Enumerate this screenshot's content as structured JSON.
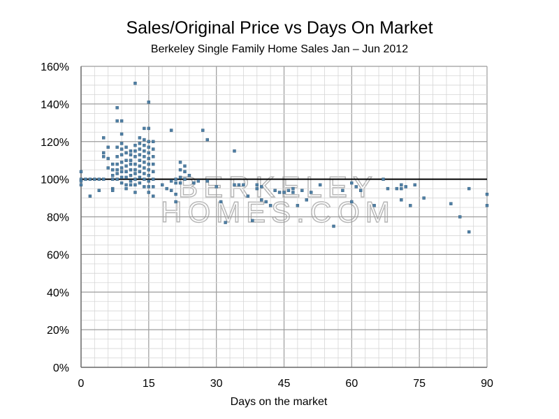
{
  "chart_data": {
    "type": "scatter",
    "title": "Sales/Original Price vs Days On Market",
    "subtitle": "Berkeley Single Family Home Sales Jan – Jun 2012",
    "xlabel": "Days on the market",
    "ylabel": "",
    "xlim": [
      0,
      90
    ],
    "ylim": [
      0,
      160
    ],
    "x_ticks": [
      0,
      15,
      30,
      45,
      60,
      75,
      90
    ],
    "x_tick_labels": [
      "0",
      "15",
      "30",
      "45",
      "60",
      "75",
      "90"
    ],
    "y_ticks": [
      0,
      20,
      40,
      60,
      80,
      100,
      120,
      140,
      160
    ],
    "y_tick_labels": [
      "0%",
      "20%",
      "40%",
      "60%",
      "80%",
      "100%",
      "120%",
      "140%",
      "160%"
    ],
    "grid": true,
    "legend": "none",
    "reference_line": 100,
    "marker_color": "#4f7fa4",
    "watermark": [
      "BERKELEY",
      "HOMES.COM"
    ],
    "points": [
      [
        0,
        104
      ],
      [
        0,
        100
      ],
      [
        0,
        99
      ],
      [
        0,
        97
      ],
      [
        1,
        100
      ],
      [
        2,
        100
      ],
      [
        2,
        91
      ],
      [
        3,
        100
      ],
      [
        4,
        100
      ],
      [
        4,
        94
      ],
      [
        5,
        122
      ],
      [
        5,
        114
      ],
      [
        5,
        112
      ],
      [
        5,
        100
      ],
      [
        6,
        117
      ],
      [
        6,
        111
      ],
      [
        6,
        106
      ],
      [
        7,
        108
      ],
      [
        7,
        105
      ],
      [
        7,
        102
      ],
      [
        7,
        100
      ],
      [
        7,
        95
      ],
      [
        7,
        94
      ],
      [
        8,
        138
      ],
      [
        8,
        131
      ],
      [
        8,
        117
      ],
      [
        8,
        112
      ],
      [
        8,
        108
      ],
      [
        8,
        105
      ],
      [
        8,
        103
      ],
      [
        8,
        100
      ],
      [
        9,
        131
      ],
      [
        9,
        124
      ],
      [
        9,
        119
      ],
      [
        9,
        116
      ],
      [
        9,
        113
      ],
      [
        9,
        109
      ],
      [
        9,
        106
      ],
      [
        9,
        104
      ],
      [
        9,
        101
      ],
      [
        9,
        98
      ],
      [
        10,
        117
      ],
      [
        10,
        114
      ],
      [
        10,
        110
      ],
      [
        10,
        107
      ],
      [
        10,
        104
      ],
      [
        10,
        101
      ],
      [
        10,
        97
      ],
      [
        10,
        95
      ],
      [
        11,
        115
      ],
      [
        11,
        113
      ],
      [
        11,
        110
      ],
      [
        11,
        108
      ],
      [
        11,
        105
      ],
      [
        11,
        102
      ],
      [
        11,
        99
      ],
      [
        11,
        97
      ],
      [
        12,
        151
      ],
      [
        12,
        118
      ],
      [
        12,
        115
      ],
      [
        12,
        112
      ],
      [
        12,
        108
      ],
      [
        12,
        105
      ],
      [
        12,
        103
      ],
      [
        12,
        100
      ],
      [
        12,
        97
      ],
      [
        12,
        93
      ],
      [
        13,
        122
      ],
      [
        13,
        119
      ],
      [
        13,
        116
      ],
      [
        13,
        113
      ],
      [
        13,
        110
      ],
      [
        13,
        107
      ],
      [
        13,
        104
      ],
      [
        13,
        101
      ],
      [
        13,
        98
      ],
      [
        14,
        127
      ],
      [
        14,
        121
      ],
      [
        14,
        118
      ],
      [
        14,
        115
      ],
      [
        14,
        112
      ],
      [
        14,
        109
      ],
      [
        14,
        106
      ],
      [
        14,
        103
      ],
      [
        14,
        100
      ],
      [
        14,
        96
      ],
      [
        15,
        141
      ],
      [
        15,
        127
      ],
      [
        15,
        120
      ],
      [
        15,
        117
      ],
      [
        15,
        114
      ],
      [
        15,
        111
      ],
      [
        15,
        108
      ],
      [
        15,
        105
      ],
      [
        15,
        102
      ],
      [
        15,
        99
      ],
      [
        15,
        96
      ],
      [
        15,
        93
      ],
      [
        16,
        120
      ],
      [
        16,
        116
      ],
      [
        16,
        112
      ],
      [
        16,
        108
      ],
      [
        16,
        104
      ],
      [
        16,
        100
      ],
      [
        16,
        96
      ],
      [
        16,
        91
      ],
      [
        18,
        97
      ],
      [
        19,
        95
      ],
      [
        20,
        126
      ],
      [
        20,
        99
      ],
      [
        20,
        94
      ],
      [
        21,
        100
      ],
      [
        21,
        98
      ],
      [
        21,
        92
      ],
      [
        21,
        88
      ],
      [
        22,
        109
      ],
      [
        22,
        105
      ],
      [
        22,
        101
      ],
      [
        22,
        98
      ],
      [
        23,
        107
      ],
      [
        23,
        104
      ],
      [
        23,
        100
      ],
      [
        24,
        102
      ],
      [
        25,
        98
      ],
      [
        26,
        99
      ],
      [
        27,
        126
      ],
      [
        28,
        121
      ],
      [
        28,
        99
      ],
      [
        30,
        96
      ],
      [
        31,
        88
      ],
      [
        32,
        77
      ],
      [
        34,
        115
      ],
      [
        34,
        97
      ],
      [
        35,
        97
      ],
      [
        36,
        97
      ],
      [
        37,
        91
      ],
      [
        38,
        78
      ],
      [
        39,
        97
      ],
      [
        39,
        95
      ],
      [
        40,
        96
      ],
      [
        40,
        89
      ],
      [
        41,
        88
      ],
      [
        42,
        86
      ],
      [
        43,
        94
      ],
      [
        44,
        93
      ],
      [
        45,
        93
      ],
      [
        46,
        94
      ],
      [
        47,
        95
      ],
      [
        47,
        93
      ],
      [
        48,
        86
      ],
      [
        49,
        94
      ],
      [
        50,
        89
      ],
      [
        51,
        93
      ],
      [
        53,
        97
      ],
      [
        56,
        75
      ],
      [
        58,
        94
      ],
      [
        60,
        98
      ],
      [
        60,
        88
      ],
      [
        61,
        96
      ],
      [
        62,
        94
      ],
      [
        65,
        86
      ],
      [
        67,
        100
      ],
      [
        68,
        95
      ],
      [
        70,
        95
      ],
      [
        71,
        97
      ],
      [
        71,
        95
      ],
      [
        71,
        89
      ],
      [
        72,
        96
      ],
      [
        73,
        86
      ],
      [
        74,
        97
      ],
      [
        76,
        90
      ],
      [
        82,
        87
      ],
      [
        84,
        80
      ],
      [
        86,
        95
      ],
      [
        86,
        72
      ],
      [
        90,
        92
      ],
      [
        90,
        86
      ]
    ]
  }
}
